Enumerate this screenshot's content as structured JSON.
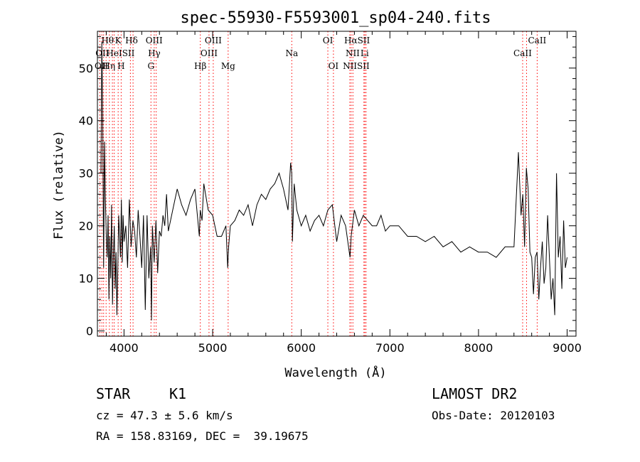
{
  "chart_data": {
    "type": "line",
    "title": "spec-55930-F5593001_sp04-240.fits",
    "xlabel": "Wavelength (Å)",
    "ylabel": "Flux (relative)",
    "xlim": [
      3700,
      9100
    ],
    "ylim": [
      -1,
      57
    ],
    "xticks": [
      4000,
      5000,
      6000,
      7000,
      8000,
      9000
    ],
    "yticks": [
      0,
      10,
      20,
      30,
      40,
      50
    ],
    "x_minor_step": 200,
    "y_minor_step": 2,
    "grid": false,
    "line_color": "#000000",
    "marker_color": "#ff0000",
    "series": [
      {
        "x": [
          3740,
          3750,
          3760,
          3770,
          3780,
          3790,
          3800,
          3810,
          3820,
          3830,
          3840,
          3850,
          3860,
          3870,
          3880,
          3890,
          3900,
          3910,
          3920,
          3930,
          3940,
          3950,
          3960,
          3970,
          3980,
          3990,
          4000,
          4020,
          4040,
          4060,
          4080,
          4100,
          4120,
          4140,
          4160,
          4180,
          4200,
          4220,
          4240,
          4260,
          4280,
          4300,
          4310,
          4320,
          4340,
          4360,
          4380,
          4400,
          4420,
          4440,
          4460,
          4480,
          4500,
          4550,
          4600,
          4650,
          4700,
          4750,
          4800,
          4850,
          4860,
          4880,
          4900,
          4950,
          5000,
          5050,
          5100,
          5150,
          5170,
          5180,
          5200,
          5250,
          5300,
          5350,
          5400,
          5450,
          5500,
          5550,
          5600,
          5650,
          5700,
          5750,
          5800,
          5850,
          5880,
          5893,
          5900,
          5920,
          5950,
          6000,
          6050,
          6100,
          6150,
          6200,
          6250,
          6300,
          6350,
          6400,
          6450,
          6500,
          6550,
          6563,
          6600,
          6650,
          6700,
          6750,
          6800,
          6850,
          6900,
          6950,
          7000,
          7100,
          7200,
          7300,
          7400,
          7500,
          7600,
          7700,
          7800,
          7900,
          8000,
          8100,
          8200,
          8300,
          8400,
          8450,
          8480,
          8500,
          8520,
          8540,
          8560,
          8580,
          8600,
          8620,
          8640,
          8660,
          8680,
          8700,
          8720,
          8740,
          8760,
          8780,
          8800,
          8820,
          8840,
          8860,
          8880,
          8900,
          8920,
          8940,
          8960,
          8980,
          9000
        ],
        "y": [
          30,
          55,
          40,
          12,
          36,
          25,
          18,
          14,
          22,
          6,
          18,
          10,
          24,
          5,
          14,
          20,
          8,
          15,
          3,
          12,
          22,
          18,
          14,
          25,
          13,
          22,
          17,
          20,
          12,
          25,
          16,
          21,
          19,
          14,
          23,
          18,
          12,
          22,
          4,
          22,
          10,
          16,
          2,
          20,
          13,
          21,
          11,
          19,
          18,
          22,
          20,
          26,
          19,
          23,
          27,
          24,
          22,
          25,
          27,
          18,
          23,
          21,
          28,
          23,
          22,
          18,
          18,
          20,
          12,
          16,
          20,
          21,
          23,
          22,
          24,
          20,
          24,
          26,
          25,
          27,
          28,
          30,
          27,
          23,
          32,
          30,
          17,
          28,
          23,
          20,
          22,
          19,
          21,
          22,
          20,
          23,
          24,
          17,
          22,
          20,
          14,
          18,
          23,
          20,
          22,
          21,
          20,
          20,
          22,
          19,
          20,
          20,
          18,
          18,
          17,
          18,
          16,
          17,
          15,
          16,
          15,
          15,
          14,
          16,
          16,
          34,
          22,
          26,
          16,
          31,
          27,
          15,
          14,
          7,
          14,
          15,
          6,
          12,
          17,
          9,
          12,
          22,
          14,
          6,
          10,
          3,
          30,
          14,
          18,
          8,
          21,
          12,
          14
        ]
      }
    ],
    "lines": [
      {
        "x": 3727,
        "labels": [
          "OII"
        ]
      },
      {
        "x": 3750,
        "labels": [
          "H9"
        ]
      },
      {
        "x": 3770,
        "labels": [
          "H8"
        ]
      },
      {
        "x": 3798,
        "labels": [
          "Hθ"
        ]
      },
      {
        "x": 3835,
        "labels": [
          "Hη"
        ]
      },
      {
        "x": 3869,
        "labels": [
          "OII"
        ]
      },
      {
        "x": 3889,
        "labels": [
          "HeI"
        ]
      },
      {
        "x": 3934,
        "labels": [
          "K"
        ]
      },
      {
        "x": 3968,
        "labels": [
          "H"
        ]
      },
      {
        "x": 4072,
        "labels": [
          "SII"
        ]
      },
      {
        "x": 4102,
        "labels": [
          "Hδ"
        ]
      },
      {
        "x": 4304,
        "labels": [
          "G"
        ]
      },
      {
        "x": 4341,
        "labels": [
          "Hγ"
        ]
      },
      {
        "x": 4363,
        "labels": [
          "OIII"
        ]
      },
      {
        "x": 4861,
        "labels": [
          "Hβ"
        ]
      },
      {
        "x": 4959,
        "labels": [
          "OIII"
        ]
      },
      {
        "x": 5007,
        "labels": [
          "OIII"
        ]
      },
      {
        "x": 5175,
        "labels": [
          "Mg"
        ]
      },
      {
        "x": 5893,
        "labels": [
          "Na"
        ]
      },
      {
        "x": 6300,
        "labels": [
          "OI"
        ]
      },
      {
        "x": 6363,
        "labels": [
          "OI"
        ]
      },
      {
        "x": 6548,
        "labels": [
          "NII"
        ]
      },
      {
        "x": 6563,
        "labels": [
          "Hα"
        ]
      },
      {
        "x": 6583,
        "labels": [
          "NII"
        ]
      },
      {
        "x": 6707,
        "labels": [
          "Li"
        ]
      },
      {
        "x": 6717,
        "labels": [
          "SII"
        ]
      },
      {
        "x": 6731,
        "labels": [
          "SII"
        ]
      },
      {
        "x": 8498,
        "labels": [
          "CaII"
        ]
      },
      {
        "x": 8542,
        "labels": []
      },
      {
        "x": 8662,
        "labels": [
          "CaII"
        ]
      }
    ],
    "line_labels": [
      {
        "text": "Hθ",
        "x": 3815,
        "row": 0
      },
      {
        "text": "K",
        "x": 3934,
        "row": 0
      },
      {
        "text": "Hδ",
        "x": 4085,
        "row": 0
      },
      {
        "text": "OIII",
        "x": 4340,
        "row": 0
      },
      {
        "text": "OIII",
        "x": 5007,
        "row": 0
      },
      {
        "text": "OI",
        "x": 6300,
        "row": 0
      },
      {
        "text": "HαSII",
        "x": 6630,
        "row": 0
      },
      {
        "text": "CaII",
        "x": 8662,
        "row": 0
      },
      {
        "text": "OII",
        "x": 3755,
        "row": 1
      },
      {
        "text": "HeISII",
        "x": 3960,
        "row": 1
      },
      {
        "text": "Hγ",
        "x": 4341,
        "row": 1
      },
      {
        "text": "OIII",
        "x": 4959,
        "row": 1
      },
      {
        "text": "Na",
        "x": 5893,
        "row": 1
      },
      {
        "text": "NII",
        "x": 6580,
        "row": 1
      },
      {
        "text": "Li",
        "x": 6715,
        "row": 1
      },
      {
        "text": "CaII",
        "x": 8498,
        "row": 1
      },
      {
        "text": "OII",
        "x": 3745,
        "row": 2
      },
      {
        "text": "Hη",
        "x": 3830,
        "row": 2
      },
      {
        "text": "H",
        "x": 3968,
        "row": 2
      },
      {
        "text": "G",
        "x": 4304,
        "row": 2
      },
      {
        "text": "Hβ",
        "x": 4861,
        "row": 2
      },
      {
        "text": "Mg",
        "x": 5175,
        "row": 2
      },
      {
        "text": "OI",
        "x": 6363,
        "row": 2
      },
      {
        "text": "NIISII",
        "x": 6620,
        "row": 2
      }
    ]
  },
  "info": {
    "object_type": "STAR",
    "subclass": "K1",
    "survey": "LAMOST DR2",
    "velocity": "cz = 47.3 ± 5.6 km/s",
    "obs_date": "Obs-Date: 20120103",
    "coords": "RA = 158.83169, DEC =  39.19675"
  }
}
